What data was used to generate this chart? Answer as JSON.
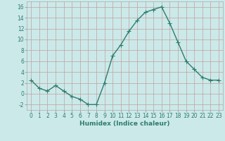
{
  "x": [
    0,
    1,
    2,
    3,
    4,
    5,
    6,
    7,
    8,
    9,
    10,
    11,
    12,
    13,
    14,
    15,
    16,
    17,
    18,
    19,
    20,
    21,
    22,
    23
  ],
  "y": [
    2.5,
    1.0,
    0.5,
    1.5,
    0.5,
    -0.5,
    -1.0,
    -2.0,
    -2.0,
    2.0,
    7.0,
    9.0,
    11.5,
    13.5,
    15.0,
    15.5,
    16.0,
    13.0,
    9.5,
    6.0,
    4.5,
    3.0,
    2.5,
    2.5
  ],
  "line_color": "#2d7d6e",
  "marker": "+",
  "marker_size": 4,
  "linewidth": 1.0,
  "bg_color": "#cce9e9",
  "grid_color": "#c0a0a0",
  "xlabel": "Humidex (Indice chaleur)",
  "xlabel_fontsize": 6.5,
  "tick_fontsize": 5.5,
  "ylim": [
    -3,
    17
  ],
  "yticks": [
    -2,
    0,
    2,
    4,
    6,
    8,
    10,
    12,
    14,
    16
  ],
  "xlim": [
    -0.5,
    23.5
  ],
  "xticks": [
    0,
    1,
    2,
    3,
    4,
    5,
    6,
    7,
    8,
    9,
    10,
    11,
    12,
    13,
    14,
    15,
    16,
    17,
    18,
    19,
    20,
    21,
    22,
    23
  ]
}
